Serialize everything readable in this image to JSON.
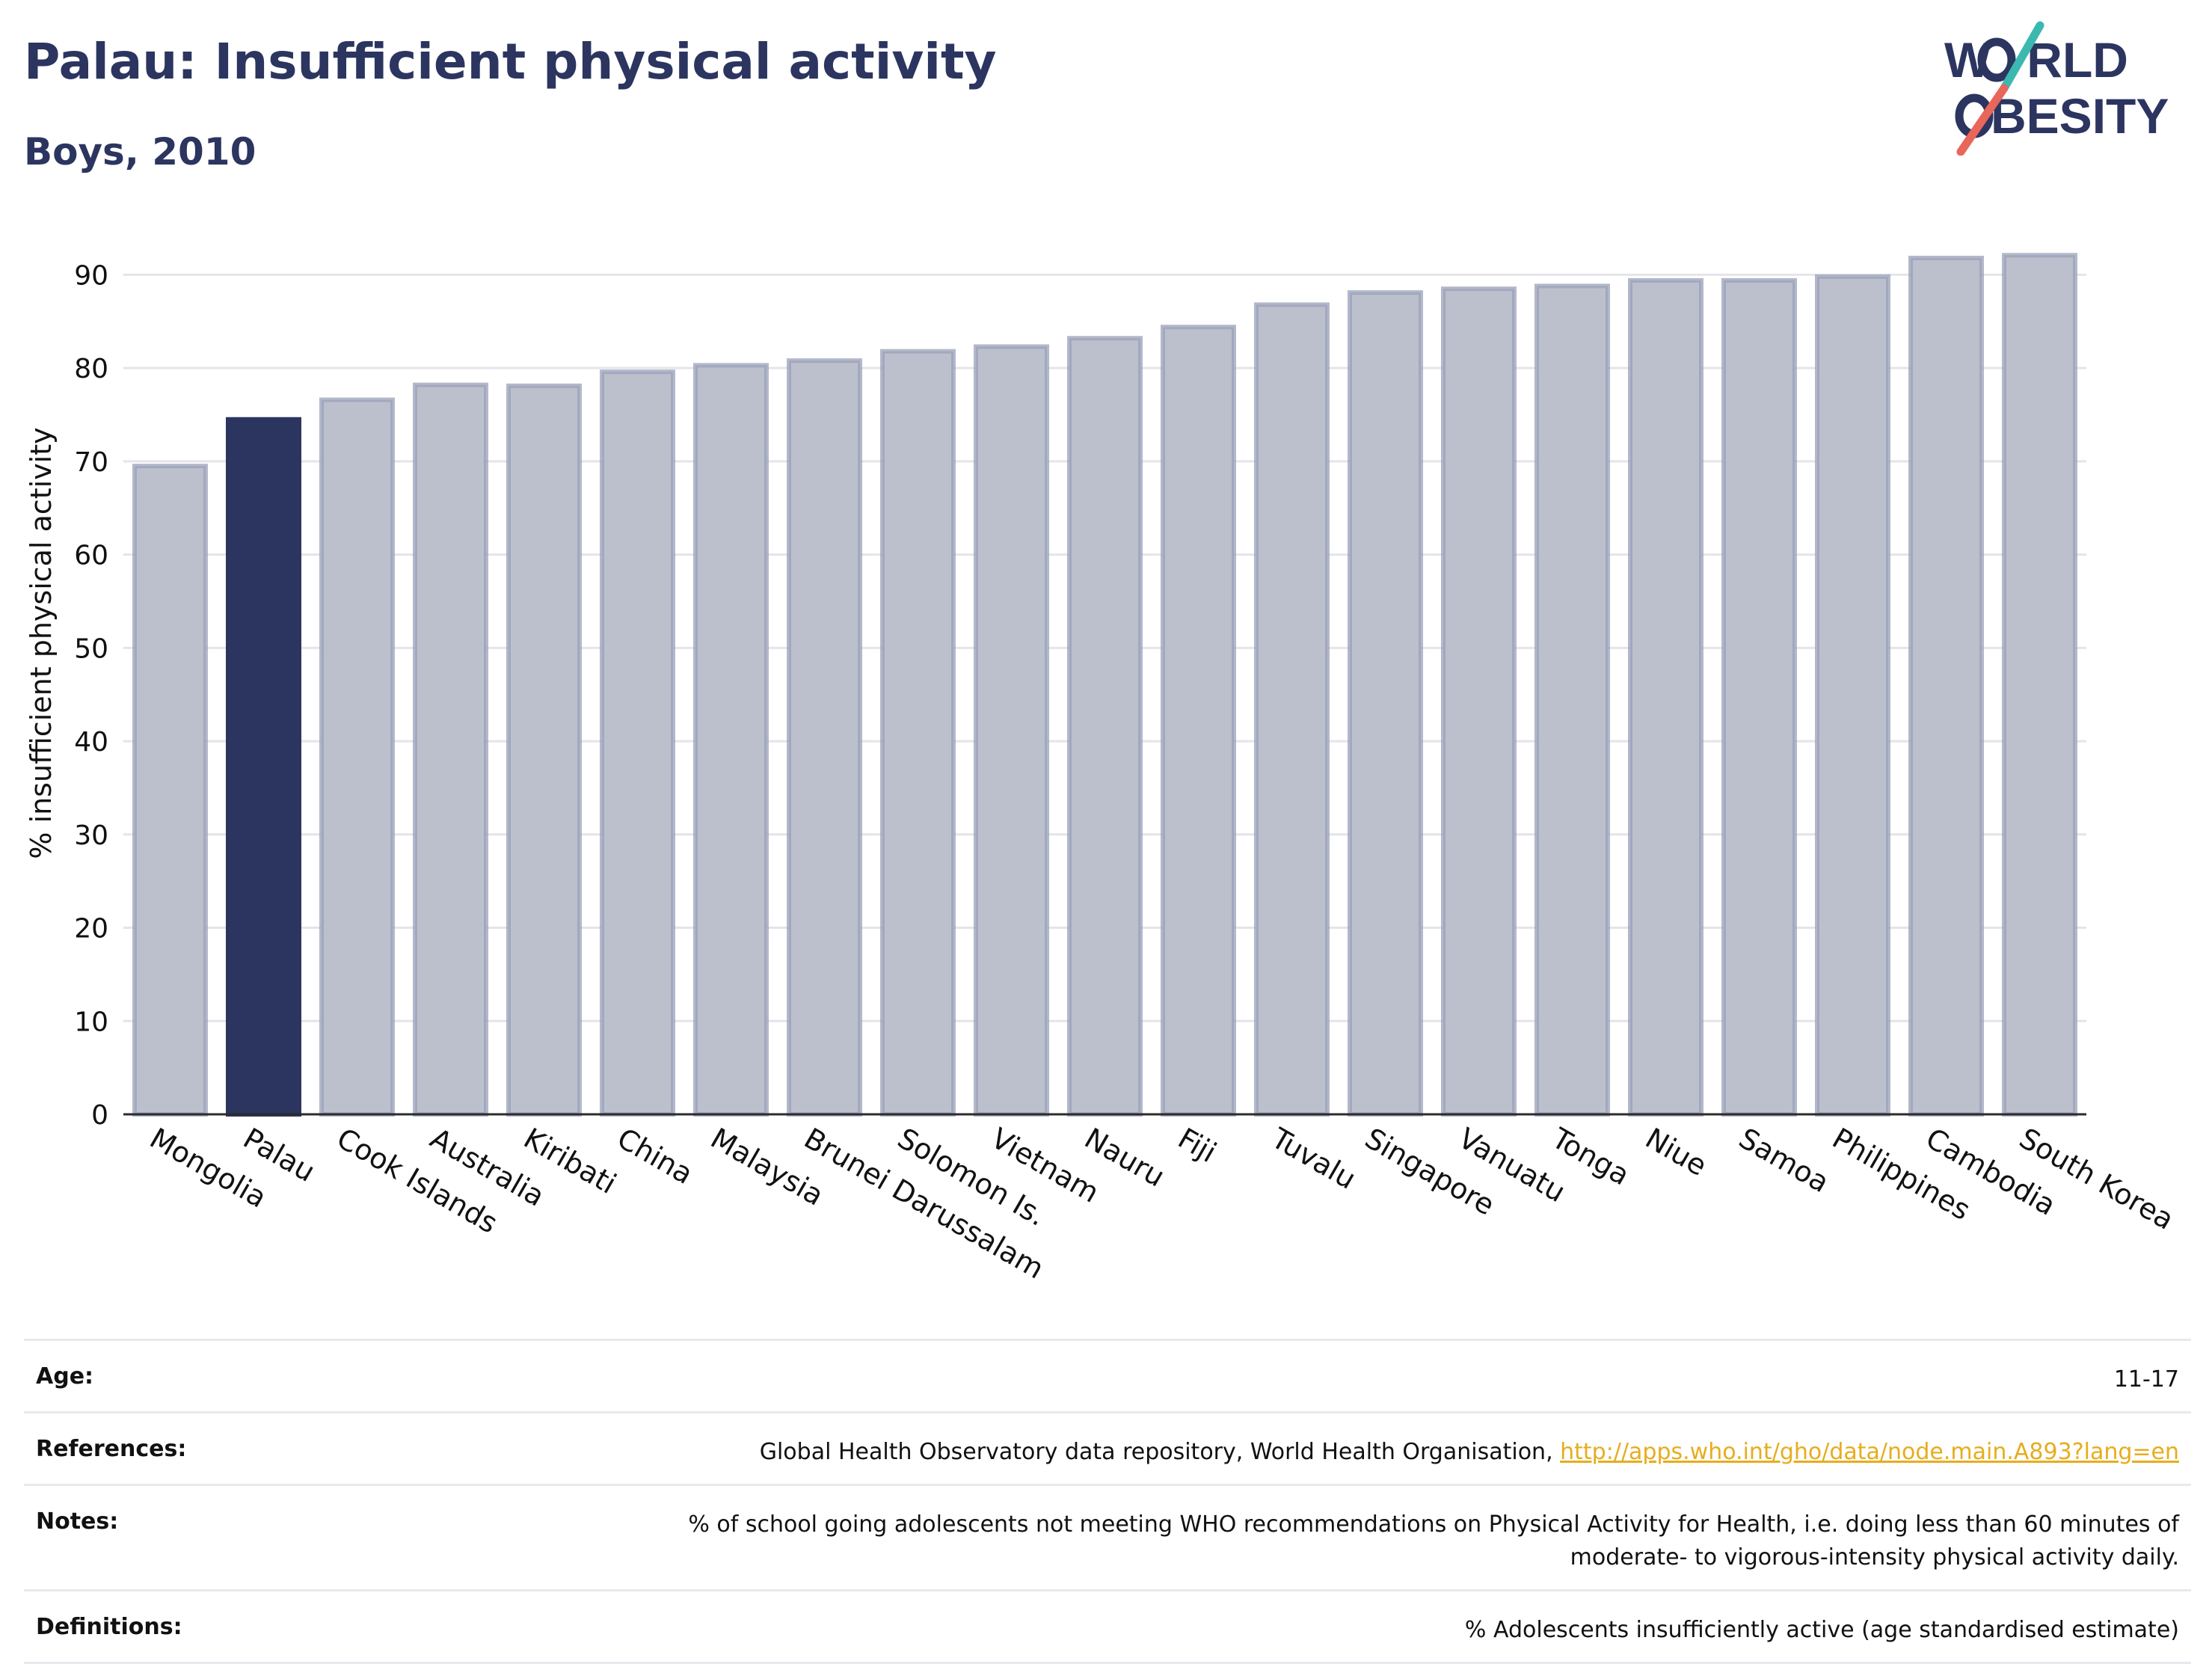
{
  "header": {
    "title": "Palau: Insufficient physical activity",
    "subtitle": "Boys, 2010"
  },
  "logo": {
    "line1_pre": "W",
    "line1_post": "RLD",
    "line2_post": "BESITY",
    "text_color": "#2b355f",
    "slash_color_top": "#3bb8b0",
    "slash_color_bottom": "#e8665a"
  },
  "chart_data": {
    "type": "bar",
    "ylabel": "% insufficient physical activity",
    "xlabel": "",
    "ylim": [
      0,
      93
    ],
    "yticks": [
      0,
      10,
      20,
      30,
      40,
      50,
      60,
      70,
      80,
      90
    ],
    "grid": true,
    "highlight": "Palau",
    "colors": {
      "bar": "#bcc0cd",
      "bar_border": "#9aa0b8",
      "highlight": "#2b355f"
    },
    "categories": [
      "Mongolia",
      "Palau",
      "Cook Islands",
      "Australia",
      "Kiribati",
      "China",
      "Malaysia",
      "Brunei Darussalam",
      "Solomon Is.",
      "Vietnam",
      "Nauru",
      "Fiji",
      "Tuvalu",
      "Singapore",
      "Vanuatu",
      "Tonga",
      "Niue",
      "Samoa",
      "Philippines",
      "Cambodia",
      "South Korea"
    ],
    "values": [
      69.5,
      74.5,
      76.6,
      78.2,
      78.1,
      79.6,
      80.3,
      80.8,
      81.8,
      82.3,
      83.2,
      84.4,
      86.8,
      88.1,
      88.5,
      88.8,
      89.4,
      89.4,
      89.8,
      91.8,
      92.1
    ]
  },
  "info": {
    "age_label": "Age:",
    "age_value": "11-17",
    "references_label": "References:",
    "references_text": "Global Health Observatory data repository, World Health Organisation, ",
    "references_link": "http://apps.who.int/gho/data/node.main.A893?lang=en",
    "notes_label": "Notes:",
    "notes_line1": "% of school going adolescents not meeting WHO recommendations on Physical Activity for Health, i.e. doing less than 60 minutes of",
    "notes_line2": "moderate- to vigorous-intensity physical activity daily.",
    "definitions_label": "Definitions:",
    "definitions_value": "% Adolescents insufficiently active (age standardised estimate)"
  }
}
